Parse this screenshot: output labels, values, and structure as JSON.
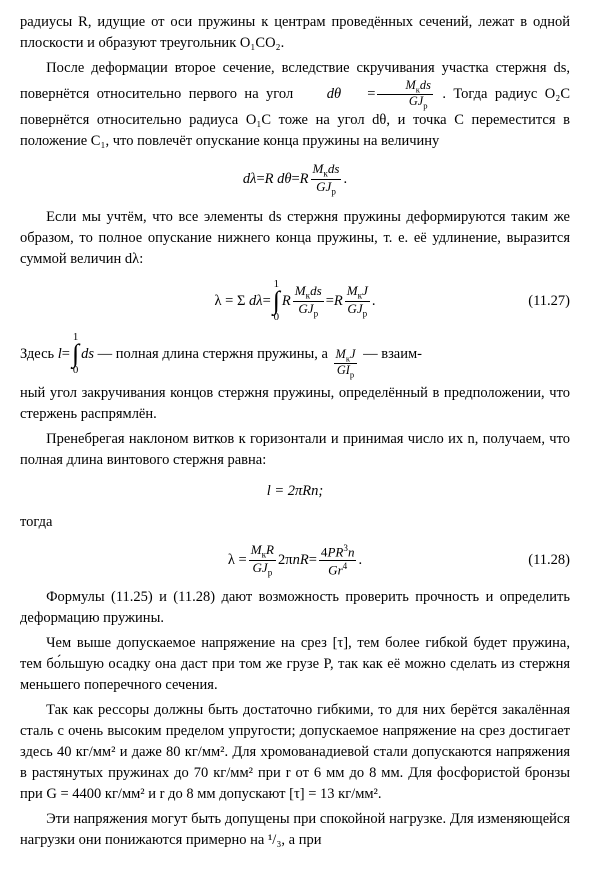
{
  "p1": "радиусы R, идущие от оси пружины к центрам проведённых сечений, лежат в одной плоскости и образуют треугольник O₁CO₂.",
  "p2a": "После деформации второе сечение, вследствие скручивания участка стержня ds, повернётся относительно первого на угол ",
  "p2b": ". Тогда радиус O₂C повернётся относительно радиуса O₁C тоже на угол dθ, и точка C переместится в положение C₁, что повлечёт опускание конца пружины на величину",
  "p3": "Если мы учтём, что все элементы ds стержня пружины деформируются таким же образом, то полное опускание нижнего конца пружины, т. е. её удлинение, выразится суммой величин dλ:",
  "eqnum_1127": "(11.27)",
  "p4a": "Здесь ",
  "p4b": " — полная длина стержня пружины, а ",
  "p4c": " — взаим-",
  "p5": "ный угол закручивания концов стержня пружины, определённый в предположении, что стержень распрямлён.",
  "p6": "Пренебрегая наклоном витков к горизонтали и принимая число их n, получаем, что полная длина винтового стержня равна:",
  "f_l": "l = 2πRn;",
  "p_togda": "тогда",
  "eqnum_1128": "(11.28)",
  "p7": "Формулы (11.25) и (11.28) дают возможность проверить прочность и определить деформацию пружины.",
  "p8": "Чем выше допускаемое напряжение на срез [τ], тем более гибкой будет пружина, тем бо́льшую осадку она даст при том же грузе P, так как её можно сделать из стержня меньшего поперечного сечения.",
  "p9": "Так как рессоры должны быть достаточно гибкими, то для них берётся закалённая сталь с очень высоким пределом упругости; допускаемое напряжение на срез достигает здесь 40 кг/мм² и даже 80 кг/мм². Для хромованадиевой стали допускаются напряжения в растянутых пружинах до 70 кг/мм² при r от 6 мм до 8 мм. Для фосфористой бронзы при G = 4400 кг/мм² и r до 8 мм допускают [τ] = 13 кг/мм².",
  "p10": "Эти напряжения могут быть допущены при спокойной нагрузке. Для изменяющейся нагрузки они понижаются примерно на ¹/₃, а при"
}
